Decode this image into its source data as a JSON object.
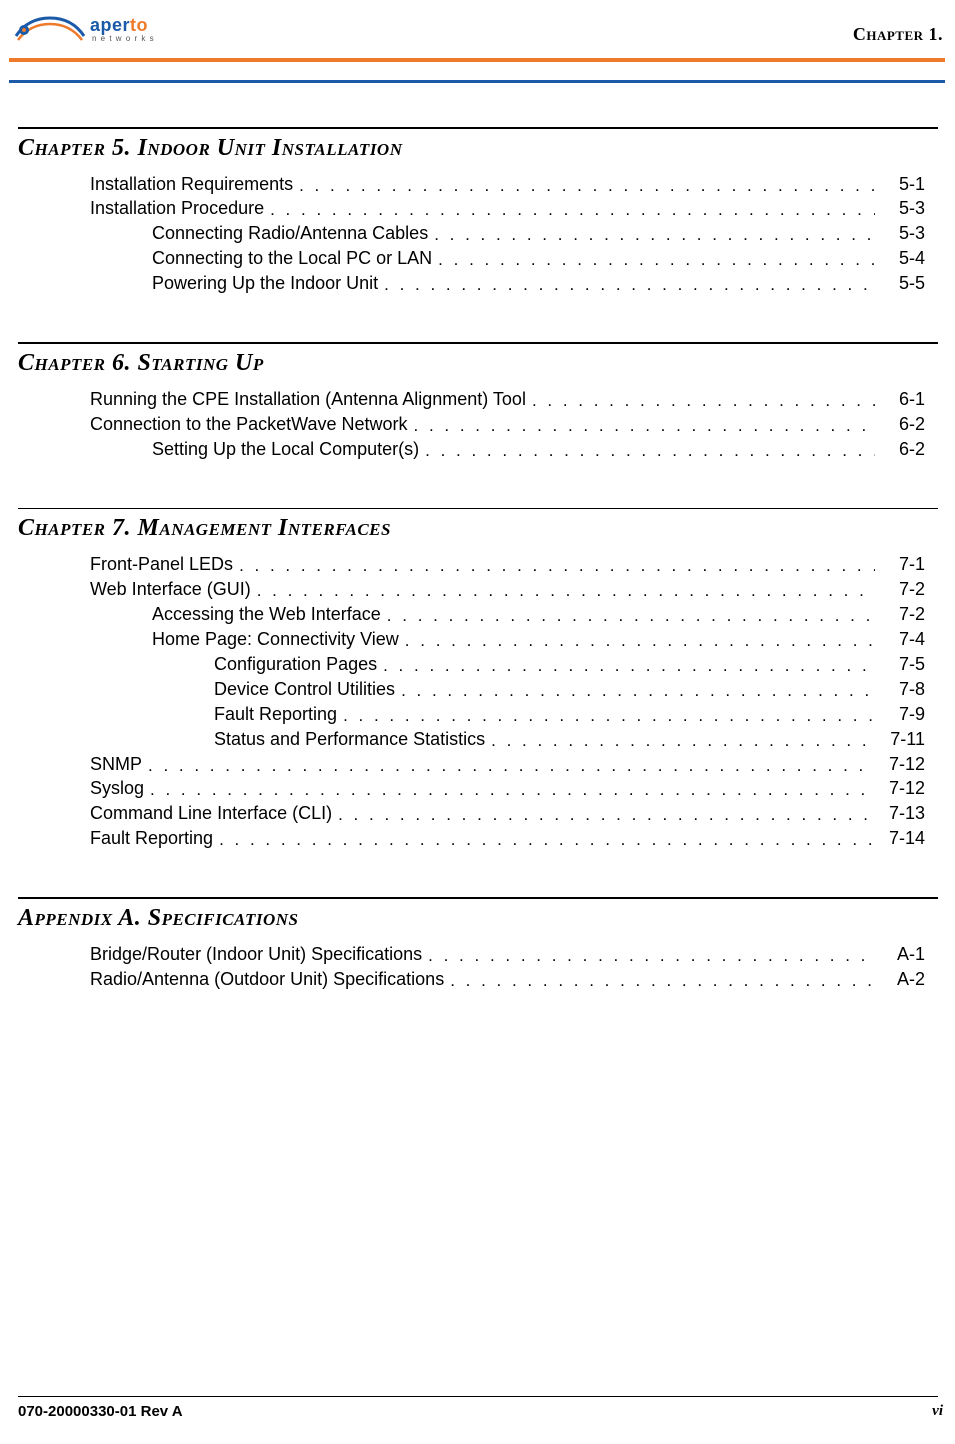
{
  "colors": {
    "orange": "#ee7a2c",
    "blue": "#1a5aa8",
    "text": "#000000",
    "bg": "#ffffff"
  },
  "typography": {
    "body_family": "Arial, Helvetica, sans-serif",
    "heading_family": "Times New Roman, serif",
    "body_size_pt": 13,
    "heading_size_pt": 18
  },
  "header": {
    "logo_text_a": "aper",
    "logo_text_b": "to",
    "logo_sub": "n e t w o r k s",
    "chapter_tag": "Chapter 1."
  },
  "sections": [
    {
      "number": "Chapter 5.",
      "title": "Indoor Unit Installation",
      "entries": [
        {
          "level": 1,
          "title": "Installation Requirements",
          "page": "5-1"
        },
        {
          "level": 1,
          "title": "Installation Procedure",
          "page": "5-3"
        },
        {
          "level": 2,
          "title": "Connecting Radio/Antenna Cables",
          "page": "5-3"
        },
        {
          "level": 2,
          "title": "Connecting to the Local PC or LAN",
          "page": "5-4"
        },
        {
          "level": 2,
          "title": "Powering Up the Indoor Unit",
          "page": "5-5"
        }
      ]
    },
    {
      "number": "Chapter 6.",
      "title": "Starting Up",
      "entries": [
        {
          "level": 1,
          "title": "Running the CPE Installation (Antenna Alignment) Tool",
          "page": "6-1"
        },
        {
          "level": 1,
          "title": "Connection to the PacketWave Network",
          "page": "6-2"
        },
        {
          "level": 2,
          "title": "Setting Up the Local Computer(s)",
          "page": "6-2"
        }
      ]
    },
    {
      "number": "Chapter 7.",
      "title": "Management Interfaces",
      "entries": [
        {
          "level": 1,
          "title": "Front-Panel LEDs",
          "page": "7-1"
        },
        {
          "level": 1,
          "title": "Web Interface (GUI)",
          "page": "7-2"
        },
        {
          "level": 2,
          "title": "Accessing the Web Interface",
          "page": "7-2"
        },
        {
          "level": 2,
          "title": "Home Page: Connectivity View",
          "page": "7-4"
        },
        {
          "level": 3,
          "title": "Configuration Pages",
          "page": "7-5"
        },
        {
          "level": 3,
          "title": "Device Control Utilities",
          "page": "7-8"
        },
        {
          "level": 3,
          "title": "Fault Reporting",
          "page": "7-9"
        },
        {
          "level": 3,
          "title": "Status and Performance Statistics",
          "page": "7-11"
        },
        {
          "level": 1,
          "title": "SNMP",
          "page": "7-12"
        },
        {
          "level": 1,
          "title": "Syslog",
          "page": "7-12"
        },
        {
          "level": 1,
          "title": "Command Line Interface (CLI)",
          "page": "7-13"
        },
        {
          "level": 1,
          "title": "Fault Reporting",
          "page": "7-14"
        }
      ]
    },
    {
      "number": "Appendix A.",
      "title": "Specifications",
      "entries": [
        {
          "level": 1,
          "title": "Bridge/Router (Indoor Unit) Specifications",
          "page": "A-1"
        },
        {
          "level": 1,
          "title": "Radio/Antenna (Outdoor Unit) Specifications",
          "page": "A-2"
        }
      ]
    }
  ],
  "footer": {
    "left": "070-20000330-01 Rev A",
    "right": "vi"
  }
}
